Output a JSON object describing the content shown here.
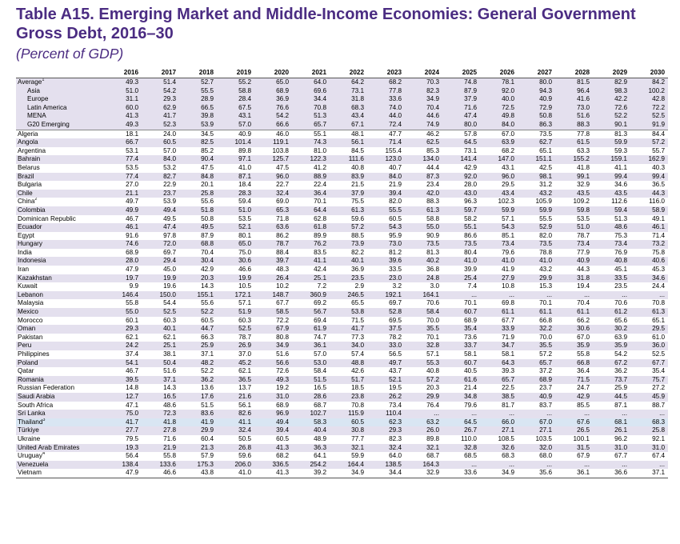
{
  "title": "Table A15. Emerging Market and Middle-Income Economies: General Government Gross Debt, 2016–30",
  "subtitle": "(Percent of GDP)",
  "table": {
    "years": [
      "2016",
      "2017",
      "2018",
      "2019",
      "2020",
      "2021",
      "2022",
      "2023",
      "2024",
      "2025",
      "2026",
      "2027",
      "2028",
      "2029",
      "2030"
    ],
    "rows": [
      {
        "label": "Average",
        "note": "1",
        "indent": false,
        "shade": true,
        "values": [
          "49.3",
          "51.4",
          "52.7",
          "55.2",
          "65.0",
          "64.0",
          "64.2",
          "68.2",
          "70.3",
          "74.8",
          "78.1",
          "80.0",
          "81.5",
          "82.9",
          "84.2"
        ]
      },
      {
        "label": "Asia",
        "indent": true,
        "shade": true,
        "values": [
          "51.0",
          "54.2",
          "55.5",
          "58.8",
          "68.9",
          "69.6",
          "73.1",
          "77.8",
          "82.3",
          "87.9",
          "92.0",
          "94.3",
          "96.4",
          "98.3",
          "100.2"
        ]
      },
      {
        "label": "Europe",
        "indent": true,
        "shade": true,
        "values": [
          "31.1",
          "29.3",
          "28.9",
          "28.4",
          "36.9",
          "34.4",
          "31.8",
          "33.6",
          "34.9",
          "37.9",
          "40.0",
          "40.9",
          "41.6",
          "42.2",
          "42.8"
        ]
      },
      {
        "label": "Latin America",
        "indent": true,
        "shade": true,
        "values": [
          "60.0",
          "62.9",
          "66.5",
          "67.5",
          "76.6",
          "70.8",
          "68.3",
          "74.0",
          "70.4",
          "71.6",
          "72.5",
          "72.9",
          "73.0",
          "72.6",
          "72.2"
        ]
      },
      {
        "label": "MENA",
        "indent": true,
        "shade": true,
        "values": [
          "41.3",
          "41.7",
          "39.8",
          "43.1",
          "54.2",
          "51.3",
          "43.4",
          "44.0",
          "44.6",
          "47.4",
          "49.8",
          "50.8",
          "51.6",
          "52.2",
          "52.5"
        ]
      },
      {
        "label": "G20 Emerging",
        "indent": true,
        "shade": true,
        "values": [
          "49.3",
          "52.3",
          "53.9",
          "57.0",
          "66.6",
          "65.7",
          "67.1",
          "72.4",
          "74.9",
          "80.0",
          "84.0",
          "86.3",
          "88.3",
          "90.1",
          "91.9"
        ]
      },
      {
        "label": "Algeria",
        "values": [
          "18.1",
          "24.0",
          "34.5",
          "40.9",
          "46.0",
          "55.1",
          "48.1",
          "47.7",
          "46.2",
          "57.8",
          "67.0",
          "73.5",
          "77.8",
          "81.3",
          "84.4"
        ]
      },
      {
        "label": "Angola",
        "shade": true,
        "values": [
          "66.7",
          "60.5",
          "82.5",
          "101.4",
          "119.1",
          "74.3",
          "56.1",
          "71.4",
          "62.5",
          "64.5",
          "63.9",
          "62.7",
          "61.5",
          "59.9",
          "57.2"
        ]
      },
      {
        "label": "Argentina",
        "values": [
          "53.1",
          "57.0",
          "85.2",
          "89.8",
          "103.8",
          "81.0",
          "84.5",
          "155.4",
          "85.3",
          "73.1",
          "68.2",
          "65.1",
          "63.3",
          "59.3",
          "55.7"
        ]
      },
      {
        "label": "Bahrain",
        "shade": true,
        "values": [
          "77.4",
          "84.0",
          "90.4",
          "97.1",
          "125.7",
          "122.3",
          "111.6",
          "123.0",
          "134.0",
          "141.4",
          "147.0",
          "151.1",
          "155.2",
          "159.1",
          "162.9"
        ]
      },
      {
        "label": "Belarus",
        "values": [
          "53.5",
          "53.2",
          "47.5",
          "41.0",
          "47.5",
          "41.2",
          "40.8",
          "40.7",
          "44.4",
          "42.9",
          "43.1",
          "42.5",
          "41.8",
          "41.1",
          "40.3"
        ]
      },
      {
        "label": "Brazil",
        "shade": true,
        "values": [
          "77.4",
          "82.7",
          "84.8",
          "87.1",
          "96.0",
          "88.9",
          "83.9",
          "84.0",
          "87.3",
          "92.0",
          "96.0",
          "98.1",
          "99.1",
          "99.4",
          "99.4"
        ]
      },
      {
        "label": "Bulgaria",
        "values": [
          "27.0",
          "22.9",
          "20.1",
          "18.4",
          "22.7",
          "22.4",
          "21.5",
          "21.9",
          "23.4",
          "28.0",
          "29.5",
          "31.2",
          "32.9",
          "34.6",
          "36.5"
        ]
      },
      {
        "label": "Chile",
        "shade": true,
        "values": [
          "21.1",
          "23.7",
          "25.8",
          "28.3",
          "32.4",
          "36.4",
          "37.9",
          "39.4",
          "42.0",
          "43.0",
          "43.4",
          "43.2",
          "43.5",
          "43.5",
          "44.3"
        ]
      },
      {
        "label": "China",
        "note": "2",
        "values": [
          "49.7",
          "53.9",
          "55.6",
          "59.4",
          "69.0",
          "70.1",
          "75.5",
          "82.0",
          "88.3",
          "96.3",
          "102.3",
          "105.9",
          "109.2",
          "112.6",
          "116.0"
        ]
      },
      {
        "label": "Colombia",
        "shade": true,
        "values": [
          "49.9",
          "49.4",
          "51.8",
          "51.0",
          "65.3",
          "64.4",
          "61.3",
          "55.5",
          "61.3",
          "59.7",
          "59.9",
          "59.9",
          "59.8",
          "59.4",
          "58.9"
        ]
      },
      {
        "label": "Dominican Republic",
        "values": [
          "46.7",
          "49.5",
          "50.8",
          "53.5",
          "71.8",
          "62.8",
          "59.6",
          "60.5",
          "58.8",
          "58.2",
          "57.1",
          "55.5",
          "53.5",
          "51.3",
          "49.1"
        ]
      },
      {
        "label": "Ecuador",
        "shade": true,
        "values": [
          "46.1",
          "47.4",
          "49.5",
          "52.1",
          "63.6",
          "61.8",
          "57.2",
          "54.3",
          "55.0",
          "55.1",
          "54.3",
          "52.9",
          "51.0",
          "48.6",
          "46.1"
        ]
      },
      {
        "label": "Egypt",
        "values": [
          "91.6",
          "97.8",
          "87.9",
          "80.1",
          "86.2",
          "89.9",
          "88.5",
          "95.9",
          "90.9",
          "86.6",
          "85.1",
          "82.0",
          "78.7",
          "75.3",
          "71.4"
        ]
      },
      {
        "label": "Hungary",
        "shade": true,
        "values": [
          "74.6",
          "72.0",
          "68.8",
          "65.0",
          "78.7",
          "76.2",
          "73.9",
          "73.0",
          "73.5",
          "73.5",
          "73.4",
          "73.5",
          "73.4",
          "73.4",
          "73.2"
        ]
      },
      {
        "label": "India",
        "values": [
          "68.9",
          "69.7",
          "70.4",
          "75.0",
          "88.4",
          "83.5",
          "82.2",
          "81.2",
          "81.3",
          "80.4",
          "79.6",
          "78.8",
          "77.9",
          "76.9",
          "75.8"
        ]
      },
      {
        "label": "Indonesia",
        "shade": true,
        "values": [
          "28.0",
          "29.4",
          "30.4",
          "30.6",
          "39.7",
          "41.1",
          "40.1",
          "39.6",
          "40.2",
          "41.0",
          "41.0",
          "41.0",
          "40.9",
          "40.8",
          "40.6"
        ]
      },
      {
        "label": "Iran",
        "values": [
          "47.9",
          "45.0",
          "42.9",
          "46.6",
          "48.3",
          "42.4",
          "36.9",
          "33.5",
          "36.8",
          "39.9",
          "41.9",
          "43.2",
          "44.3",
          "45.1",
          "45.3"
        ]
      },
      {
        "label": "Kazakhstan",
        "shade": true,
        "values": [
          "19.7",
          "19.9",
          "20.3",
          "19.9",
          "26.4",
          "25.1",
          "23.5",
          "23.0",
          "24.8",
          "25.4",
          "27.9",
          "29.9",
          "31.8",
          "33.5",
          "34.6"
        ]
      },
      {
        "label": "Kuwait",
        "values": [
          "9.9",
          "19.6",
          "14.3",
          "10.5",
          "10.2",
          "7.2",
          "2.9",
          "3.2",
          "3.0",
          "7.4",
          "10.8",
          "15.3",
          "19.4",
          "23.5",
          "24.4"
        ]
      },
      {
        "label": "Lebanon",
        "shade": true,
        "values": [
          "146.4",
          "150.0",
          "155.1",
          "172.1",
          "148.7",
          "360.9",
          "246.5",
          "192.1",
          "164.1",
          "...",
          "...",
          "...",
          "...",
          "...",
          "..."
        ]
      },
      {
        "label": "Malaysia",
        "values": [
          "55.8",
          "54.4",
          "55.6",
          "57.1",
          "67.7",
          "69.2",
          "65.5",
          "69.7",
          "70.6",
          "70.1",
          "69.8",
          "70.1",
          "70.4",
          "70.6",
          "70.8"
        ]
      },
      {
        "label": "Mexico",
        "shade": true,
        "values": [
          "55.0",
          "52.5",
          "52.2",
          "51.9",
          "58.5",
          "56.7",
          "53.8",
          "52.8",
          "58.4",
          "60.7",
          "61.1",
          "61.1",
          "61.1",
          "61.2",
          "61.3"
        ]
      },
      {
        "label": "Morocco",
        "values": [
          "60.1",
          "60.3",
          "60.5",
          "60.3",
          "72.2",
          "69.4",
          "71.5",
          "69.5",
          "70.0",
          "68.9",
          "67.7",
          "66.8",
          "66.2",
          "65.6",
          "65.1"
        ]
      },
      {
        "label": "Oman",
        "shade": true,
        "values": [
          "29.3",
          "40.1",
          "44.7",
          "52.5",
          "67.9",
          "61.9",
          "41.7",
          "37.5",
          "35.5",
          "35.4",
          "33.9",
          "32.2",
          "30.6",
          "30.2",
          "29.5"
        ]
      },
      {
        "label": "Pakistan",
        "values": [
          "62.1",
          "62.1",
          "66.3",
          "78.7",
          "80.8",
          "74.7",
          "77.3",
          "78.2",
          "70.1",
          "73.6",
          "71.9",
          "70.0",
          "67.0",
          "63.9",
          "61.0"
        ]
      },
      {
        "label": "Peru",
        "shade": true,
        "values": [
          "24.2",
          "25.1",
          "25.9",
          "26.9",
          "34.9",
          "36.1",
          "34.0",
          "33.0",
          "32.8",
          "33.7",
          "34.7",
          "35.5",
          "35.9",
          "35.9",
          "36.0"
        ]
      },
      {
        "label": "Philippines",
        "values": [
          "37.4",
          "38.1",
          "37.1",
          "37.0",
          "51.6",
          "57.0",
          "57.4",
          "56.5",
          "57.1",
          "58.1",
          "58.1",
          "57.2",
          "55.8",
          "54.2",
          "52.5"
        ]
      },
      {
        "label": "Poland",
        "shade": true,
        "values": [
          "54.1",
          "50.4",
          "48.2",
          "45.2",
          "56.6",
          "53.0",
          "48.8",
          "49.7",
          "55.3",
          "60.7",
          "64.3",
          "65.7",
          "66.8",
          "67.2",
          "67.7"
        ]
      },
      {
        "label": "Qatar",
        "values": [
          "46.7",
          "51.6",
          "52.2",
          "62.1",
          "72.6",
          "58.4",
          "42.6",
          "43.7",
          "40.8",
          "40.5",
          "39.3",
          "37.2",
          "36.4",
          "36.2",
          "35.4"
        ]
      },
      {
        "label": "Romania",
        "shade": true,
        "values": [
          "39.5",
          "37.1",
          "36.2",
          "36.5",
          "49.3",
          "51.5",
          "51.7",
          "52.1",
          "57.2",
          "61.6",
          "65.7",
          "68.9",
          "71.5",
          "73.7",
          "75.7"
        ]
      },
      {
        "label": "Russian Federation",
        "values": [
          "14.8",
          "14.3",
          "13.6",
          "13.7",
          "19.2",
          "16.5",
          "18.5",
          "19.5",
          "20.3",
          "21.4",
          "22.5",
          "23.7",
          "24.7",
          "25.9",
          "27.2"
        ]
      },
      {
        "label": "Saudi Arabia",
        "shade": true,
        "values": [
          "12.7",
          "16.5",
          "17.6",
          "21.6",
          "31.0",
          "28.6",
          "23.8",
          "26.2",
          "29.9",
          "34.8",
          "38.5",
          "40.9",
          "42.9",
          "44.5",
          "45.9"
        ]
      },
      {
        "label": "South Africa",
        "values": [
          "47.1",
          "48.6",
          "51.5",
          "56.1",
          "68.9",
          "68.7",
          "70.8",
          "73.4",
          "76.4",
          "79.6",
          "81.7",
          "83.7",
          "85.5",
          "87.1",
          "88.7"
        ]
      },
      {
        "label": "Sri Lanka",
        "shade": true,
        "values": [
          "75.0",
          "72.3",
          "83.6",
          "82.6",
          "96.9",
          "102.7",
          "115.9",
          "110.4",
          "...",
          "...",
          "...",
          "...",
          "...",
          "...",
          "..."
        ]
      },
      {
        "label": "Thailand",
        "note": "3",
        "highlight": true,
        "values": [
          "41.7",
          "41.8",
          "41.9",
          "41.1",
          "49.4",
          "58.3",
          "60.5",
          "62.3",
          "63.2",
          "64.5",
          "66.0",
          "67.0",
          "67.6",
          "68.1",
          "68.3"
        ]
      },
      {
        "label": "Türkiye",
        "shade": true,
        "values": [
          "27.7",
          "27.8",
          "29.9",
          "32.4",
          "39.4",
          "40.4",
          "30.8",
          "29.3",
          "26.0",
          "26.7",
          "27.1",
          "27.1",
          "26.5",
          "26.1",
          "25.8"
        ]
      },
      {
        "label": "Ukraine",
        "values": [
          "79.5",
          "71.6",
          "60.4",
          "50.5",
          "60.5",
          "48.9",
          "77.7",
          "82.3",
          "89.8",
          "110.0",
          "108.5",
          "103.5",
          "100.1",
          "96.2",
          "92.1"
        ]
      },
      {
        "label": "United Arab Emirates",
        "shade": true,
        "values": [
          "19.3",
          "21.9",
          "21.3",
          "26.8",
          "41.3",
          "36.3",
          "32.1",
          "32.4",
          "32.1",
          "32.8",
          "32.6",
          "32.0",
          "31.5",
          "31.0",
          "31.0"
        ]
      },
      {
        "label": "Uruguay",
        "note": "4",
        "values": [
          "56.4",
          "55.8",
          "57.9",
          "59.6",
          "68.2",
          "64.1",
          "59.9",
          "64.0",
          "68.7",
          "68.5",
          "68.3",
          "68.0",
          "67.9",
          "67.7",
          "67.4"
        ]
      },
      {
        "label": "Venezuela",
        "shade": true,
        "values": [
          "138.4",
          "133.6",
          "175.3",
          "206.0",
          "336.5",
          "254.2",
          "164.4",
          "138.5",
          "164.3",
          "...",
          "...",
          "...",
          "...",
          "...",
          "..."
        ]
      },
      {
        "label": "Vietnam",
        "values": [
          "47.9",
          "46.6",
          "43.8",
          "41.0",
          "41.3",
          "39.2",
          "34.9",
          "34.4",
          "32.9",
          "33.6",
          "34.9",
          "35.6",
          "36.1",
          "36.6",
          "37.1"
        ]
      }
    ]
  }
}
